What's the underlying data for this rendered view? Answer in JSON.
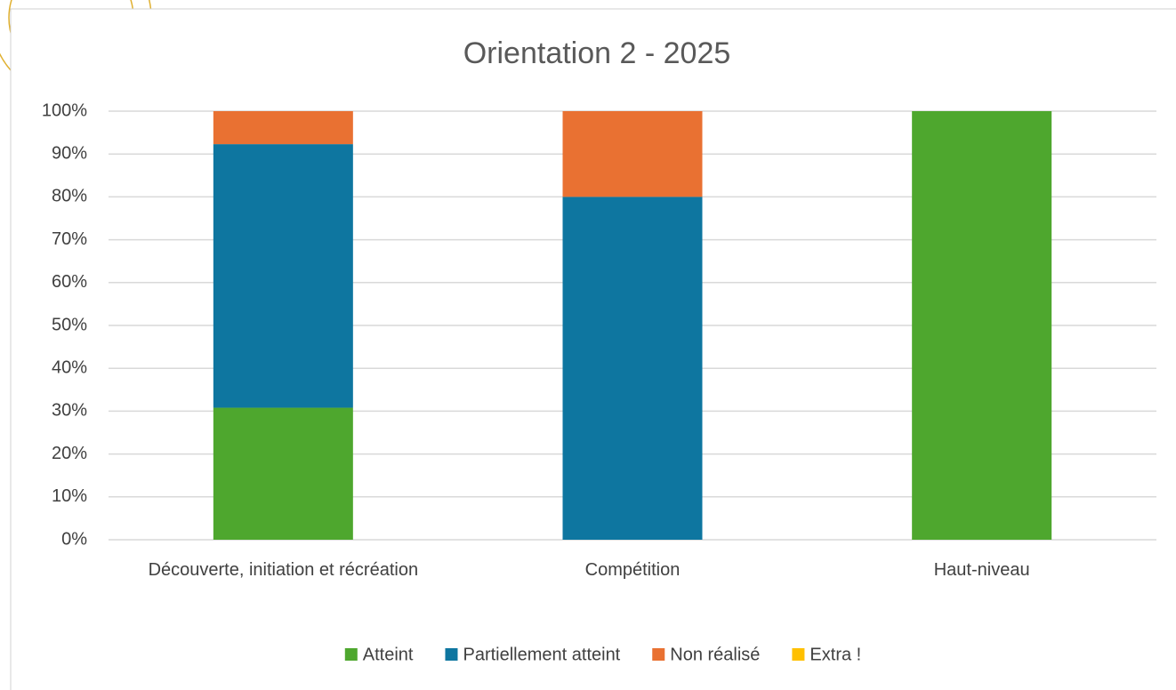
{
  "chart_data": {
    "type": "stacked_bar",
    "title": "Orientation 2 - 2025",
    "categories": [
      "Découverte, initiation et récréation",
      "Compétition",
      "Haut-niveau"
    ],
    "series": [
      {
        "name": "Atteint",
        "color": "#4ea72e",
        "values": [
          30.8,
          0,
          100
        ]
      },
      {
        "name": "Partiellement atteint",
        "color": "#0e76a0",
        "values": [
          61.5,
          80,
          0
        ]
      },
      {
        "name": "Non réalisé",
        "color": "#e97132",
        "values": [
          7.7,
          20,
          0
        ]
      },
      {
        "name": "Extra !",
        "color": "#ffc000",
        "values": [
          0,
          0,
          0
        ]
      }
    ],
    "ylim": [
      0,
      100
    ],
    "yticks": [
      {
        "value": 0,
        "label": "0%"
      },
      {
        "value": 10,
        "label": "10%"
      },
      {
        "value": 20,
        "label": "20%"
      },
      {
        "value": 30,
        "label": "30%"
      },
      {
        "value": 40,
        "label": "40%"
      },
      {
        "value": 50,
        "label": "50%"
      },
      {
        "value": 60,
        "label": "60%"
      },
      {
        "value": 70,
        "label": "70%"
      },
      {
        "value": 80,
        "label": "80%"
      },
      {
        "value": 90,
        "label": "90%"
      },
      {
        "value": 100,
        "label": "100%"
      }
    ],
    "grid": true,
    "legend": "bottom"
  }
}
